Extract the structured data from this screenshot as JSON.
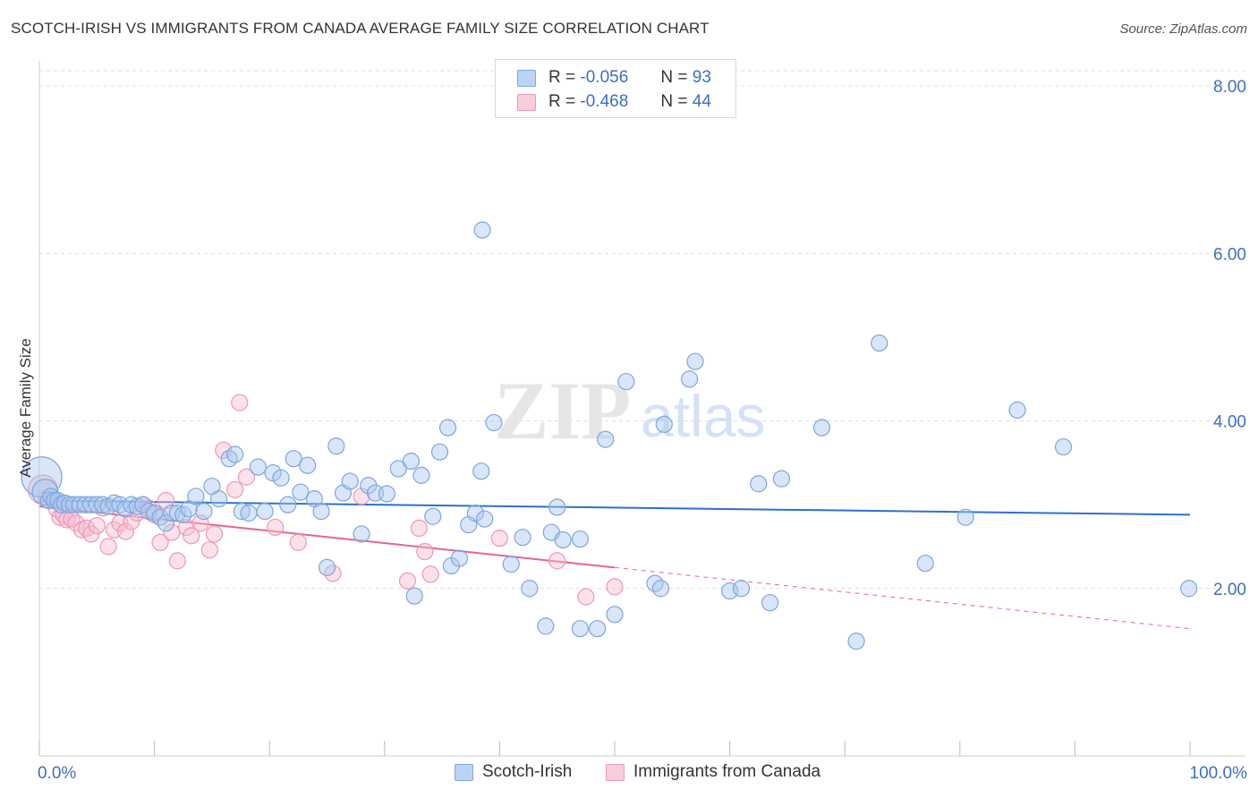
{
  "title": "SCOTCH-IRISH VS IMMIGRANTS FROM CANADA AVERAGE FAMILY SIZE CORRELATION CHART",
  "source": "Source: ZipAtlas.com",
  "watermark": {
    "zip": "ZIP",
    "atlas": "atlas"
  },
  "legend": {
    "rows": [
      {
        "r_label": "R =",
        "r_value": "-0.056",
        "n_label": "N =",
        "n_value": "93"
      },
      {
        "r_label": "R =",
        "r_value": "-0.468",
        "n_label": "N =",
        "n_value": "44"
      }
    ]
  },
  "colors": {
    "series1_fill": "#a9c8f0",
    "series1_stroke": "#7ea6dc",
    "series1_line": "#2f6fcf",
    "series2_fill": "#f6bcd0",
    "series2_stroke": "#ee97b5",
    "series2_line": "#e4648f",
    "tick_text": "#3d6fc4",
    "grid": "#dddddd"
  },
  "chart_data": {
    "type": "scatter",
    "title": "SCOTCH-IRISH VS IMMIGRANTS FROM CANADA AVERAGE FAMILY SIZE CORRELATION CHART",
    "xlabel": "",
    "ylabel": "Average Family Size",
    "xlim": [
      0,
      100
    ],
    "ylim": [
      0,
      8.3
    ],
    "x_tick_labels": [
      "0.0%",
      "100.0%"
    ],
    "y_ticks": [
      2,
      4,
      6,
      8
    ],
    "y_tick_labels": [
      "2.00",
      "4.00",
      "6.00",
      "8.00"
    ],
    "grid": "horizontal dashed",
    "legend_position": "top-center",
    "series": [
      {
        "name": "Scotch-Irish",
        "trend": {
          "x": [
            0,
            100
          ],
          "y": [
            3.05,
            2.88
          ],
          "dashed_from": null
        },
        "points": [
          {
            "x": 0.2,
            "y": 3.33,
            "s": 2.5
          },
          {
            "x": 0.5,
            "y": 3.15,
            "s": 1.6
          },
          {
            "x": 0.8,
            "y": 3.05
          },
          {
            "x": 1.0,
            "y": 3.1
          },
          {
            "x": 1.3,
            "y": 3.05
          },
          {
            "x": 1.6,
            "y": 3.05
          },
          {
            "x": 1.9,
            "y": 3.0
          },
          {
            "x": 2.2,
            "y": 3.02
          },
          {
            "x": 2.6,
            "y": 3.0
          },
          {
            "x": 3.0,
            "y": 3.0
          },
          {
            "x": 3.5,
            "y": 3.0
          },
          {
            "x": 4.0,
            "y": 3.0
          },
          {
            "x": 4.5,
            "y": 3.0
          },
          {
            "x": 5.0,
            "y": 3.0
          },
          {
            "x": 5.5,
            "y": 3.0
          },
          {
            "x": 6.0,
            "y": 2.98
          },
          {
            "x": 6.5,
            "y": 3.02
          },
          {
            "x": 7.0,
            "y": 3.0
          },
          {
            "x": 7.5,
            "y": 2.95
          },
          {
            "x": 8.0,
            "y": 3.0
          },
          {
            "x": 8.5,
            "y": 2.98
          },
          {
            "x": 9.0,
            "y": 3.0
          },
          {
            "x": 9.5,
            "y": 2.92
          },
          {
            "x": 10.0,
            "y": 2.9
          },
          {
            "x": 10.5,
            "y": 2.85
          },
          {
            "x": 11.0,
            "y": 2.78
          },
          {
            "x": 11.5,
            "y": 2.9
          },
          {
            "x": 12.0,
            "y": 2.9
          },
          {
            "x": 12.5,
            "y": 2.88
          },
          {
            "x": 13.0,
            "y": 2.95
          },
          {
            "x": 13.6,
            "y": 3.1
          },
          {
            "x": 14.3,
            "y": 2.92
          },
          {
            "x": 15.0,
            "y": 3.22
          },
          {
            "x": 15.6,
            "y": 3.07
          },
          {
            "x": 16.5,
            "y": 3.55
          },
          {
            "x": 17.0,
            "y": 3.6
          },
          {
            "x": 17.6,
            "y": 2.92
          },
          {
            "x": 18.2,
            "y": 2.9
          },
          {
            "x": 19.0,
            "y": 3.45
          },
          {
            "x": 19.6,
            "y": 2.92
          },
          {
            "x": 20.3,
            "y": 3.38
          },
          {
            "x": 21.0,
            "y": 3.32
          },
          {
            "x": 21.6,
            "y": 3.0
          },
          {
            "x": 22.1,
            "y": 3.55
          },
          {
            "x": 22.7,
            "y": 3.15
          },
          {
            "x": 23.3,
            "y": 3.47
          },
          {
            "x": 23.9,
            "y": 3.07
          },
          {
            "x": 24.5,
            "y": 2.92
          },
          {
            "x": 25.0,
            "y": 2.25
          },
          {
            "x": 25.8,
            "y": 3.7
          },
          {
            "x": 26.4,
            "y": 3.14
          },
          {
            "x": 27.0,
            "y": 3.28
          },
          {
            "x": 28.0,
            "y": 2.65
          },
          {
            "x": 28.6,
            "y": 3.23
          },
          {
            "x": 29.2,
            "y": 3.14
          },
          {
            "x": 30.2,
            "y": 3.13
          },
          {
            "x": 31.2,
            "y": 3.43
          },
          {
            "x": 32.3,
            "y": 3.52
          },
          {
            "x": 32.6,
            "y": 1.91
          },
          {
            "x": 33.2,
            "y": 3.35
          },
          {
            "x": 34.2,
            "y": 2.86
          },
          {
            "x": 34.8,
            "y": 3.63
          },
          {
            "x": 35.5,
            "y": 3.92
          },
          {
            "x": 35.8,
            "y": 2.27
          },
          {
            "x": 36.5,
            "y": 2.36
          },
          {
            "x": 37.3,
            "y": 2.76
          },
          {
            "x": 37.9,
            "y": 2.9
          },
          {
            "x": 38.4,
            "y": 3.4
          },
          {
            "x": 38.7,
            "y": 2.83
          },
          {
            "x": 39.5,
            "y": 3.98
          },
          {
            "x": 41.0,
            "y": 2.29
          },
          {
            "x": 42.0,
            "y": 2.61
          },
          {
            "x": 42.6,
            "y": 2.0
          },
          {
            "x": 44.0,
            "y": 1.55
          },
          {
            "x": 44.5,
            "y": 2.67
          },
          {
            "x": 45.0,
            "y": 2.97
          },
          {
            "x": 45.5,
            "y": 2.58
          },
          {
            "x": 47.0,
            "y": 2.59
          },
          {
            "x": 47.0,
            "y": 1.52
          },
          {
            "x": 38.5,
            "y": 6.28
          },
          {
            "x": 48.5,
            "y": 1.52
          },
          {
            "x": 49.2,
            "y": 3.78
          },
          {
            "x": 50.0,
            "y": 1.69
          },
          {
            "x": 51.0,
            "y": 4.47
          },
          {
            "x": 53.5,
            "y": 2.06
          },
          {
            "x": 54.0,
            "y": 2.0
          },
          {
            "x": 54.3,
            "y": 3.96
          },
          {
            "x": 56.5,
            "y": 4.5
          },
          {
            "x": 57.0,
            "y": 4.71
          },
          {
            "x": 60.0,
            "y": 1.97
          },
          {
            "x": 61.0,
            "y": 2.0
          },
          {
            "x": 62.5,
            "y": 3.25
          },
          {
            "x": 63.5,
            "y": 1.83
          },
          {
            "x": 64.5,
            "y": 3.31
          },
          {
            "x": 68.0,
            "y": 3.92
          },
          {
            "x": 71.0,
            "y": 1.37
          },
          {
            "x": 73.0,
            "y": 4.93
          },
          {
            "x": 77.0,
            "y": 2.3
          },
          {
            "x": 80.5,
            "y": 2.85
          },
          {
            "x": 85.0,
            "y": 4.13
          },
          {
            "x": 89.0,
            "y": 3.69
          },
          {
            "x": 99.9,
            "y": 2.0
          }
        ]
      },
      {
        "name": "Immigrants from Canada",
        "trend": {
          "x": [
            0,
            100
          ],
          "y": [
            2.98,
            1.52
          ],
          "dashed_from": 50
        },
        "points": [
          {
            "x": 0.3,
            "y": 3.18,
            "s": 1.8
          },
          {
            "x": 0.6,
            "y": 3.07
          },
          {
            "x": 1.2,
            "y": 3.07
          },
          {
            "x": 1.5,
            "y": 2.95
          },
          {
            "x": 1.8,
            "y": 2.85
          },
          {
            "x": 2.1,
            "y": 2.88
          },
          {
            "x": 2.4,
            "y": 2.82
          },
          {
            "x": 2.8,
            "y": 2.83
          },
          {
            "x": 3.2,
            "y": 2.78
          },
          {
            "x": 3.7,
            "y": 2.7
          },
          {
            "x": 4.1,
            "y": 2.72
          },
          {
            "x": 4.5,
            "y": 2.65
          },
          {
            "x": 5.0,
            "y": 2.75
          },
          {
            "x": 5.5,
            "y": 2.96
          },
          {
            "x": 6.0,
            "y": 2.5
          },
          {
            "x": 6.5,
            "y": 2.7
          },
          {
            "x": 7.0,
            "y": 2.78
          },
          {
            "x": 7.5,
            "y": 2.68
          },
          {
            "x": 8.0,
            "y": 2.8
          },
          {
            "x": 8.5,
            "y": 2.9
          },
          {
            "x": 9.0,
            "y": 3.0
          },
          {
            "x": 9.5,
            "y": 2.96
          },
          {
            "x": 10.0,
            "y": 2.88
          },
          {
            "x": 10.5,
            "y": 2.55
          },
          {
            "x": 11.0,
            "y": 3.05
          },
          {
            "x": 11.5,
            "y": 2.67
          },
          {
            "x": 12.0,
            "y": 2.33
          },
          {
            "x": 12.8,
            "y": 2.73
          },
          {
            "x": 13.2,
            "y": 2.63
          },
          {
            "x": 14.0,
            "y": 2.78
          },
          {
            "x": 14.8,
            "y": 2.46
          },
          {
            "x": 15.2,
            "y": 2.65
          },
          {
            "x": 16.0,
            "y": 3.65
          },
          {
            "x": 17.0,
            "y": 3.18
          },
          {
            "x": 17.4,
            "y": 4.22
          },
          {
            "x": 18.0,
            "y": 3.33
          },
          {
            "x": 20.5,
            "y": 2.73
          },
          {
            "x": 22.5,
            "y": 2.55
          },
          {
            "x": 25.5,
            "y": 2.18
          },
          {
            "x": 28.0,
            "y": 3.1
          },
          {
            "x": 32.0,
            "y": 2.09
          },
          {
            "x": 33.0,
            "y": 2.72
          },
          {
            "x": 33.5,
            "y": 2.44
          },
          {
            "x": 34.0,
            "y": 2.17
          },
          {
            "x": 40.0,
            "y": 2.6
          },
          {
            "x": 45.0,
            "y": 2.33
          },
          {
            "x": 47.5,
            "y": 1.9
          },
          {
            "x": 50.0,
            "y": 2.02
          }
        ]
      }
    ]
  },
  "bottom_legend": [
    "Scotch-Irish",
    "Immigrants from Canada"
  ]
}
